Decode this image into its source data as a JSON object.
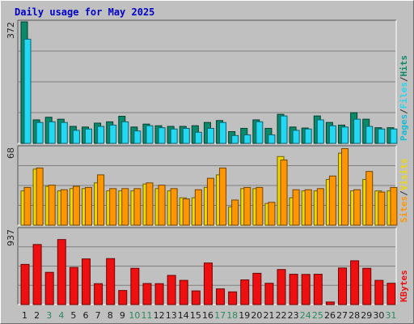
{
  "title": "Daily usage for May 2025",
  "colors": {
    "hits": "#0a8a6a",
    "files": "#22d8f2",
    "pages": "#15bcd6",
    "visits": "#f0d800",
    "sites": "#ff9600",
    "kbytes": "#ee1010",
    "weekday": "#1a1a1a",
    "weekend": "#2a8a5a"
  },
  "chart_data": [
    {
      "type": "bar",
      "name": "hits-files-pages",
      "categories": [
        "1",
        "2",
        "3",
        "4",
        "5",
        "6",
        "7",
        "8",
        "9",
        "10",
        "11",
        "12",
        "13",
        "14",
        "15",
        "16",
        "17",
        "18",
        "19",
        "20",
        "21",
        "22",
        "23",
        "24",
        "25",
        "26",
        "27",
        "28",
        "29",
        "30",
        "31"
      ],
      "ymax_label": "372",
      "ylim": [
        0,
        372
      ],
      "legend": [
        "Pages",
        "/",
        "Files",
        "/",
        "Hits"
      ],
      "series": [
        {
          "name": "Hits",
          "color": "#0a8a6a",
          "values": [
            372,
            72,
            80,
            74,
            52,
            50,
            62,
            66,
            83,
            50,
            59,
            54,
            52,
            52,
            54,
            64,
            70,
            36,
            46,
            72,
            46,
            89,
            50,
            47,
            84,
            64,
            56,
            94,
            74,
            48,
            48
          ]
        },
        {
          "name": "Files",
          "color": "#22d8f2",
          "values": [
            319,
            64,
            66,
            64,
            40,
            44,
            52,
            56,
            66,
            38,
            54,
            48,
            44,
            46,
            34,
            46,
            64,
            24,
            26,
            66,
            26,
            84,
            40,
            44,
            72,
            54,
            50,
            74,
            52,
            44,
            44
          ]
        }
      ]
    },
    {
      "type": "bar",
      "name": "sites-visits",
      "categories": [
        "1",
        "2",
        "3",
        "4",
        "5",
        "6",
        "7",
        "8",
        "9",
        "10",
        "11",
        "12",
        "13",
        "14",
        "15",
        "16",
        "17",
        "18",
        "19",
        "20",
        "21",
        "22",
        "23",
        "24",
        "25",
        "26",
        "27",
        "28",
        "29",
        "30",
        "31"
      ],
      "ymax_label": "68",
      "ylim": [
        0,
        68
      ],
      "legend": [
        "Sites",
        "/",
        "Visits"
      ],
      "series": [
        {
          "name": "Visits",
          "color": "#f0d800",
          "values": [
            30,
            49,
            34,
            30,
            32,
            32,
            37,
            30,
            30,
            30,
            36,
            32,
            30,
            24,
            24,
            33,
            44,
            16,
            32,
            32,
            19,
            60,
            24,
            30,
            30,
            40,
            63,
            30,
            40,
            30,
            30
          ]
        },
        {
          "name": "Sites",
          "color": "#ff9600",
          "values": [
            33,
            50,
            35,
            31,
            34,
            33,
            44,
            32,
            32,
            32,
            37,
            35,
            32,
            23,
            31,
            41,
            50,
            22,
            33,
            33,
            20,
            57,
            31,
            31,
            32,
            43,
            67,
            31,
            47,
            29,
            33
          ]
        }
      ]
    },
    {
      "type": "bar",
      "name": "kbytes",
      "categories": [
        "1",
        "2",
        "3",
        "4",
        "5",
        "6",
        "7",
        "8",
        "9",
        "10",
        "11",
        "12",
        "13",
        "14",
        "15",
        "16",
        "17",
        "18",
        "19",
        "20",
        "21",
        "22",
        "23",
        "24",
        "25",
        "26",
        "27",
        "28",
        "29",
        "30",
        "31"
      ],
      "ymax_label": "937",
      "ylim": [
        0,
        937
      ],
      "legend": [
        "KBytes"
      ],
      "series": [
        {
          "name": "KBytes",
          "color": "#ee1010",
          "values": [
            500,
            747,
            401,
            809,
            462,
            568,
            260,
            572,
            175,
            451,
            262,
            260,
            363,
            301,
            170,
            517,
            195,
            158,
            307,
            389,
            265,
            436,
            377,
            375,
            377,
            32,
            455,
            545,
            451,
            301,
            265
          ]
        }
      ]
    }
  ]
}
